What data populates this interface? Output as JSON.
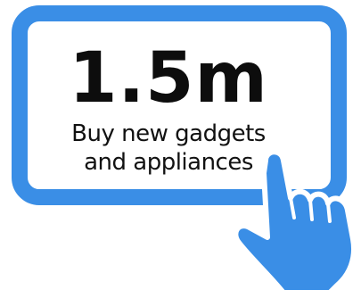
{
  "stat": {
    "value": "1.5m",
    "caption_line_1": "Buy new gadgets",
    "caption_line_2": "and appliances"
  },
  "colors": {
    "device_blue": "#3a8ee6",
    "text": "#111111",
    "background": "#ffffff"
  },
  "icons": {
    "device": "tablet-icon",
    "hand": "pointing-hand-icon"
  }
}
